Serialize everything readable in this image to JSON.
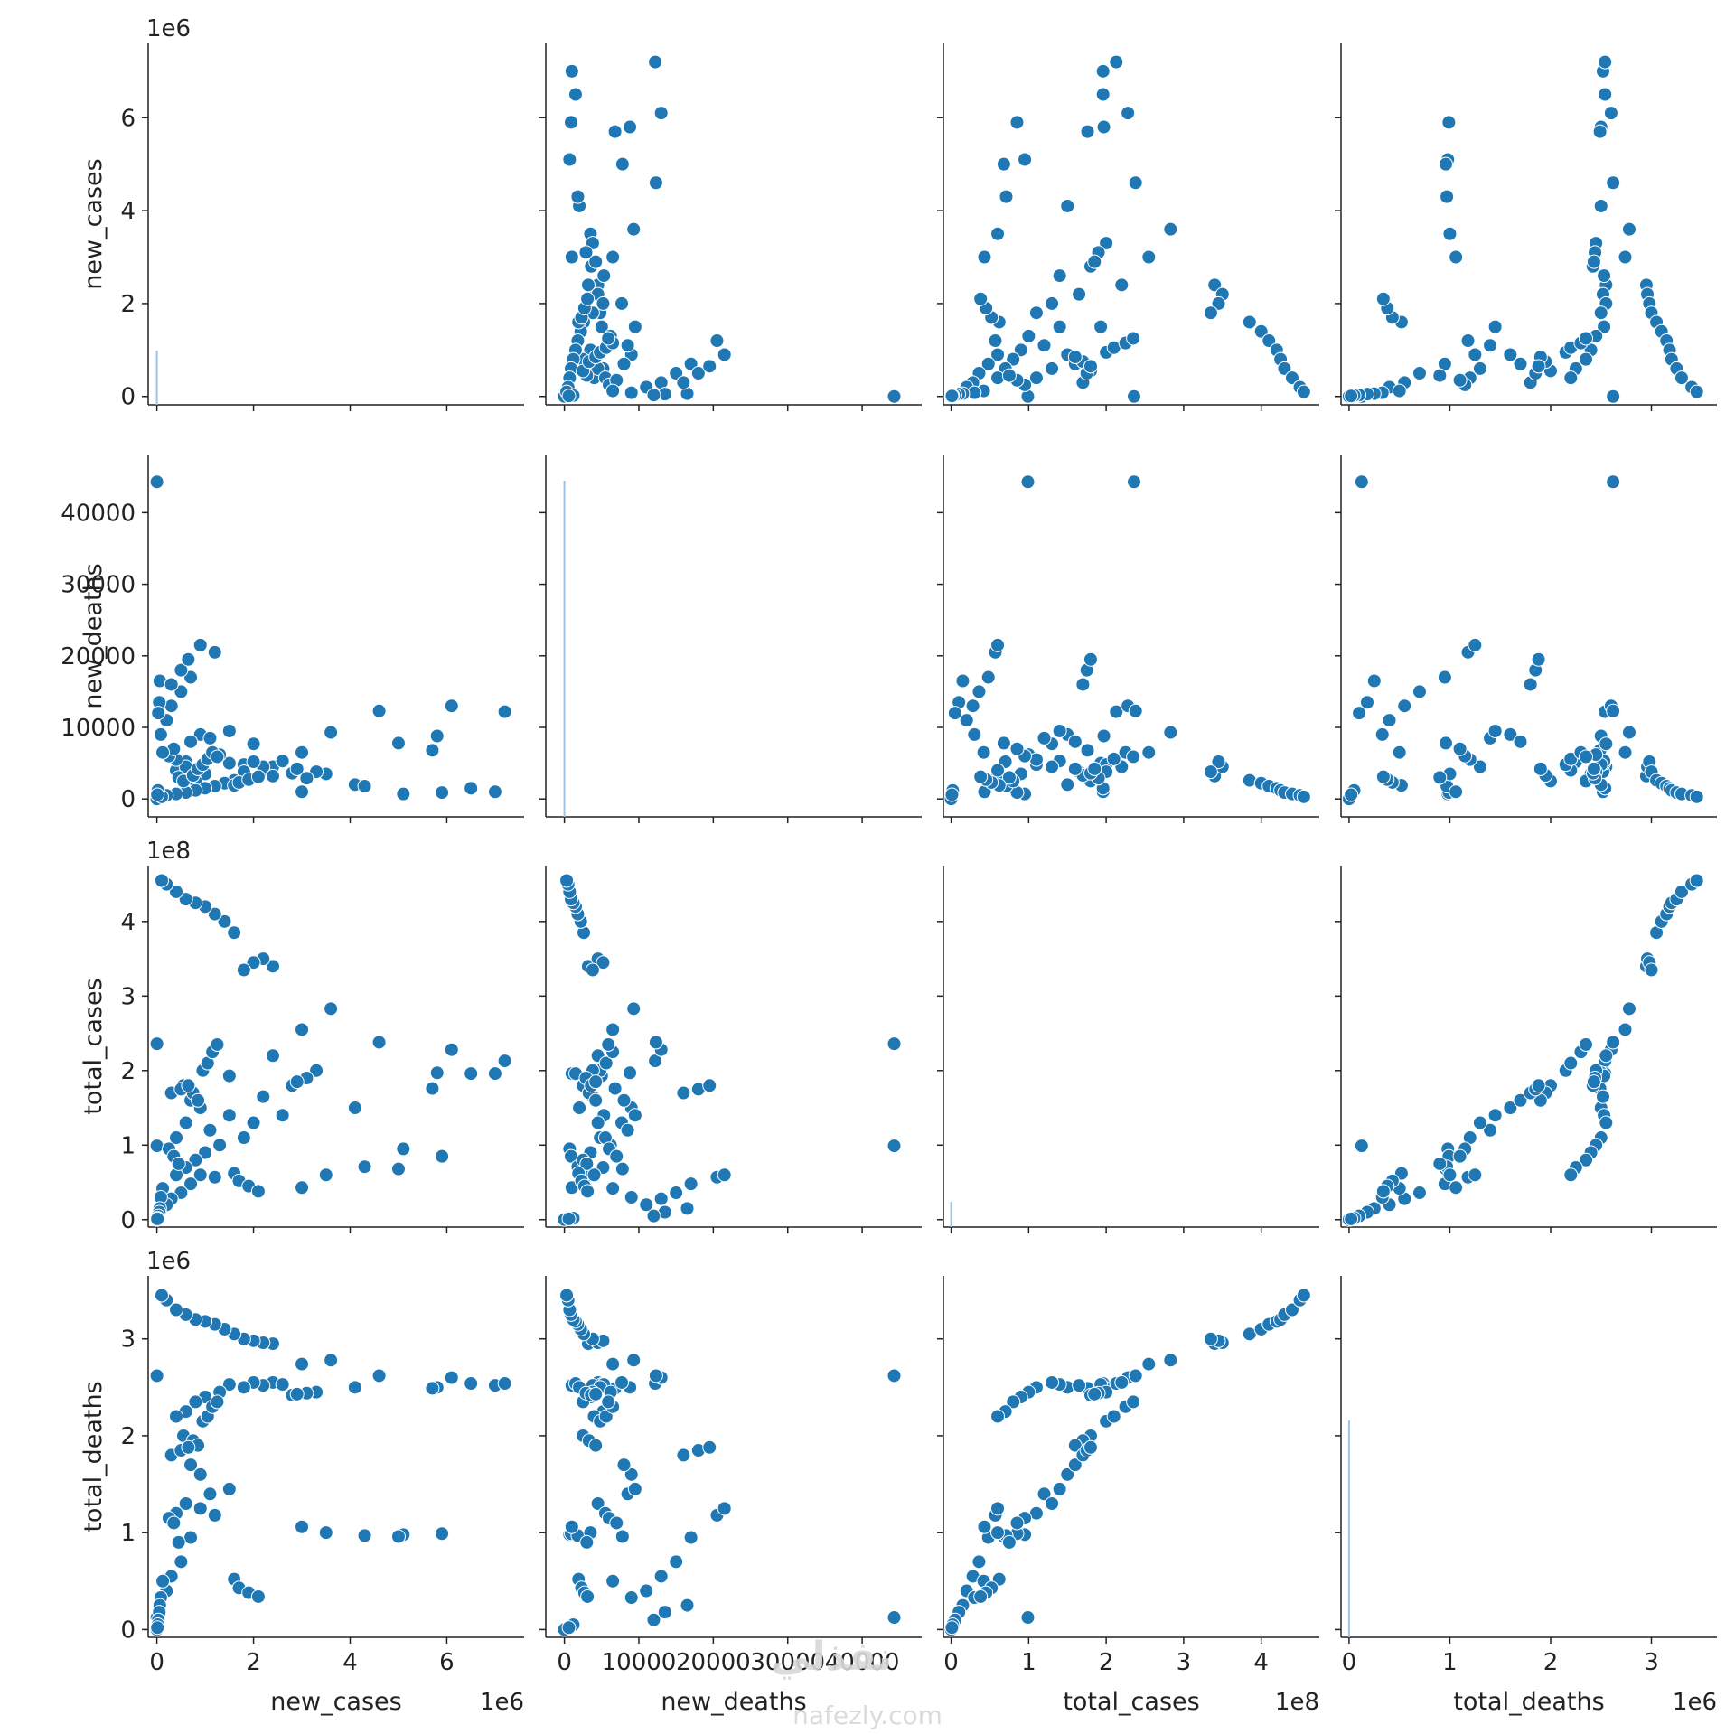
{
  "watermark": {
    "arabic": "نفذلي",
    "latin": "nafezly.com"
  },
  "chart_data": {
    "type": "scatter",
    "subtype": "pairplot",
    "marker_color": "#1f77b4",
    "marker_edge": "#ffffff",
    "variables": [
      {
        "name": "new_cases",
        "label": "new_cases",
        "range": [
          -180000,
          7600000
        ],
        "scale_label": "1e6",
        "ticks": [
          0,
          2000000,
          4000000,
          6000000
        ],
        "tick_labels": [
          "0",
          "2",
          "4",
          "6"
        ]
      },
      {
        "name": "new_deaths",
        "label": "new_deaths",
        "range": [
          -2500,
          48000
        ],
        "scale_label": "",
        "ticks": [
          0,
          10000,
          20000,
          30000,
          40000
        ],
        "tick_labels": [
          "0",
          "10000",
          "20000",
          "30000",
          "40000"
        ]
      },
      {
        "name": "total_cases",
        "label": "total_cases",
        "range": [
          -10000000,
          475000000
        ],
        "scale_label": "1e8",
        "ticks": [
          0,
          100000000,
          200000000,
          300000000,
          400000000
        ],
        "tick_labels": [
          "0",
          "1",
          "2",
          "3",
          "4"
        ]
      },
      {
        "name": "total_deaths",
        "label": "total_deaths",
        "range": [
          -80000,
          3650000
        ],
        "scale_label": "1e6",
        "ticks": [
          0,
          1000000,
          2000000,
          3000000
        ],
        "tick_labels": [
          "0",
          "1",
          "2",
          "3"
        ]
      }
    ],
    "histograms": {
      "new_cases": {
        "bin_value": 0,
        "height_fraction": 0.15
      },
      "new_deaths": {
        "bin_value": 0,
        "height_fraction": 0.93
      },
      "total_cases": {
        "bin_value": 0,
        "height_fraction": 0.07
      },
      "total_deaths": {
        "bin_value": 0,
        "height_fraction": 0.6
      }
    },
    "points": [
      [
        0,
        0,
        0,
        0
      ],
      [
        0,
        44300,
        99000000,
        125000
      ],
      [
        0,
        44300,
        236000000,
        2620000
      ],
      [
        7000000,
        1000,
        196000000,
        2520000
      ],
      [
        7200000,
        12200,
        213000000,
        2540000
      ],
      [
        6100000,
        13000,
        228000000,
        2600000
      ],
      [
        6500000,
        1500,
        196000000,
        2540000
      ],
      [
        5800000,
        8800,
        197000000,
        2500000
      ],
      [
        5700000,
        6800,
        176000000,
        2490000
      ],
      [
        4600000,
        12300,
        238000000,
        2620000
      ],
      [
        4100000,
        2000,
        150000000,
        2500000
      ],
      [
        3600000,
        9300,
        283000000,
        2780000
      ],
      [
        3000000,
        6500,
        255000000,
        2740000
      ],
      [
        2400000,
        4500,
        220000000,
        2550000
      ],
      [
        2200000,
        3800,
        165000000,
        2520000
      ],
      [
        1500000,
        5000,
        193000000,
        2530000
      ],
      [
        1200000,
        20500,
        57000000,
        1180000
      ],
      [
        900000,
        21500,
        60000000,
        1250000
      ],
      [
        700000,
        17000,
        48000000,
        950000
      ],
      [
        500000,
        15000,
        36000000,
        700000
      ],
      [
        300000,
        13000,
        28000000,
        550000
      ],
      [
        200000,
        11000,
        20000000,
        400000
      ],
      [
        5100000,
        700,
        95000000,
        980000
      ],
      [
        5000000,
        7800,
        68000000,
        960000
      ],
      [
        5900000,
        900,
        85000000,
        990000
      ],
      [
        4300000,
        1800,
        71000000,
        970000
      ],
      [
        3500000,
        3500,
        60000000,
        1000000
      ],
      [
        3000000,
        1000,
        43000000,
        1060000
      ],
      [
        2600000,
        5300,
        140000000,
        2530000
      ],
      [
        2000000,
        7700,
        130000000,
        2550000
      ],
      [
        1800000,
        4800,
        110000000,
        2500000
      ],
      [
        1300000,
        6200,
        100000000,
        2450000
      ],
      [
        1000000,
        3500,
        90000000,
        2400000
      ],
      [
        800000,
        2500,
        80000000,
        2350000
      ],
      [
        600000,
        5200,
        70000000,
        2250000
      ],
      [
        400000,
        4000,
        60000000,
        2200000
      ],
      [
        2400000,
        3200,
        340000000,
        2950000
      ],
      [
        2200000,
        4500,
        350000000,
        2960000
      ],
      [
        2000000,
        5200,
        345000000,
        2980000
      ],
      [
        1800000,
        3800,
        335000000,
        3000000
      ],
      [
        1600000,
        2600,
        385000000,
        3050000
      ],
      [
        1400000,
        2200,
        400000000,
        3100000
      ],
      [
        1200000,
        1800,
        410000000,
        3150000
      ],
      [
        1000000,
        1500,
        420000000,
        3180000
      ],
      [
        800000,
        1200,
        425000000,
        3200000
      ],
      [
        600000,
        900,
        430000000,
        3250000
      ],
      [
        400000,
        700,
        440000000,
        3300000
      ],
      [
        200000,
        500,
        450000000,
        3400000
      ],
      [
        100000,
        300,
        455000000,
        3450000
      ],
      [
        900000,
        9000,
        150000000,
        1600000
      ],
      [
        700000,
        8000,
        160000000,
        1700000
      ],
      [
        1100000,
        8500,
        120000000,
        1400000
      ],
      [
        1500000,
        9500,
        140000000,
        1450000
      ],
      [
        600000,
        4500,
        130000000,
        1300000
      ],
      [
        400000,
        5500,
        110000000,
        1200000
      ],
      [
        250000,
        6000,
        95000000,
        1150000
      ],
      [
        350000,
        7000,
        85000000,
        1100000
      ],
      [
        450000,
        3000,
        75000000,
        900000
      ],
      [
        550000,
        2500,
        180000000,
        2000000
      ],
      [
        750000,
        3300,
        170000000,
        1950000
      ],
      [
        850000,
        4200,
        160000000,
        1900000
      ],
      [
        950000,
        4800,
        200000000,
        2150000
      ],
      [
        1050000,
        5600,
        210000000,
        2200000
      ],
      [
        1150000,
        6500,
        225000000,
        2300000
      ],
      [
        1250000,
        5900,
        235000000,
        2350000
      ],
      [
        3300000,
        3800,
        200000000,
        2450000
      ],
      [
        3100000,
        2900,
        190000000,
        2440000
      ],
      [
        2800000,
        3600,
        180000000,
        2420000
      ],
      [
        2900000,
        4200,
        185000000,
        2430000
      ],
      [
        120000,
        6500,
        42000000,
        500000
      ],
      [
        80000,
        9000,
        30000000,
        330000
      ],
      [
        60000,
        16500,
        15000000,
        250000
      ],
      [
        50000,
        13500,
        10000000,
        180000
      ],
      [
        30000,
        12000,
        5000000,
        100000
      ],
      [
        20000,
        1200,
        2000000,
        50000
      ],
      [
        10000,
        600,
        1000000,
        20000
      ],
      [
        1600000,
        1900,
        62000000,
        520000
      ],
      [
        1700000,
        2300,
        52000000,
        430000
      ],
      [
        1900000,
        2700,
        45000000,
        380000
      ],
      [
        2100000,
        3100,
        38000000,
        340000
      ],
      [
        300000,
        16000,
        170000000,
        1800000
      ],
      [
        500000,
        18000,
        175000000,
        1850000
      ],
      [
        650000,
        19500,
        180000000,
        1880000
      ]
    ]
  }
}
